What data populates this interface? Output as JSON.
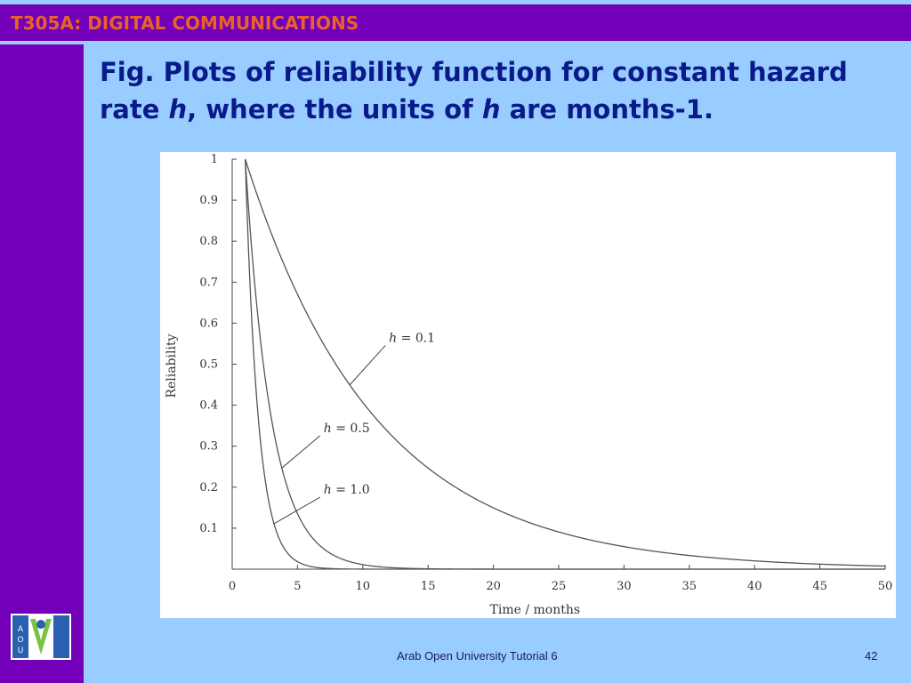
{
  "header": {
    "title": "T305A: DIGITAL COMMUNICATIONS"
  },
  "slide": {
    "title_part1": "Fig. Plots of reliability function for constant hazard rate ",
    "title_h1": "h",
    "title_part2": ", where the units of ",
    "title_h2": "h",
    "title_part3": " are months-1."
  },
  "colors": {
    "purple": "#7300b8",
    "background": "#99ccff",
    "title_blue": "#0a1a8a",
    "header_text": "#e8622a",
    "curve": "#555555"
  },
  "chart_data": {
    "type": "line",
    "xlabel": "Time / months",
    "ylabel": "Reliability",
    "xlim": [
      0,
      50
    ],
    "ylim": [
      0,
      1
    ],
    "xticks": [
      0,
      5,
      10,
      15,
      20,
      25,
      30,
      35,
      40,
      45,
      50
    ],
    "yticks": [
      0.1,
      0.2,
      0.3,
      0.4,
      0.5,
      0.6,
      0.7,
      0.8,
      0.9,
      1
    ],
    "x_start": 1,
    "grid": false,
    "series": [
      {
        "name_var": "h",
        "name_val": "= 0.1",
        "h": 0.1,
        "label_at_x": 9,
        "label_text_at": [
          12,
          0.55
        ]
      },
      {
        "name_var": "h",
        "name_val": "= 0.5",
        "h": 0.5,
        "label_at_x": 3.8,
        "label_text_at": [
          7,
          0.33
        ]
      },
      {
        "name_var": "h",
        "name_val": "= 1.0",
        "h": 1.0,
        "label_at_x": 3.2,
        "label_text_at": [
          7,
          0.18
        ]
      }
    ]
  },
  "footer": {
    "text": "Arab Open University Tutorial 6",
    "page": "42"
  },
  "logo": {
    "icon": "aou-logo-icon"
  }
}
